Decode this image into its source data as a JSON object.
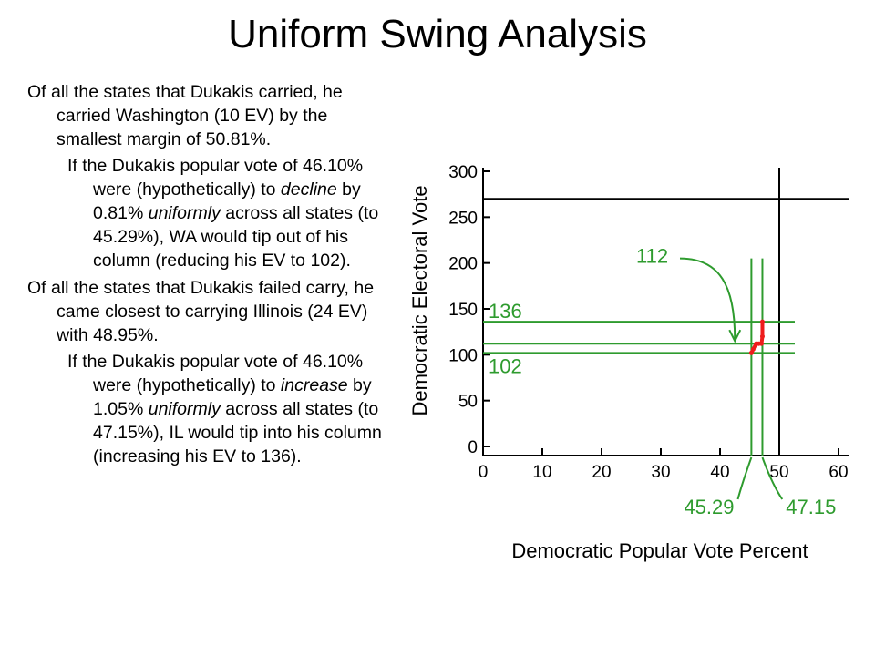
{
  "slide": {
    "title": "Uniform Swing Analysis",
    "para1": "Of all the states that Dukakis carried, he carried Washington (10 EV) by the smallest margin of 50.81%.",
    "para2_a": "If the Dukakis popular vote of 46.10% were (hypothetically) to ",
    "para2_em1": "decline",
    "para2_b": " by 0.81% ",
    "para2_em2": "uniformly",
    "para2_c": " across all states (to 45.29%), WA would tip out of his column (reducing his EV to 102).",
    "para3": "Of all the states that Dukakis failed carry, he came closest to carrying Illinois (24 EV) with 48.95%.",
    "para4_a": "If the Dukakis popular vote of 46.10% were (hypothetically) to ",
    "para4_em1": "increase",
    "para4_b": " by 1.05% ",
    "para4_em2": "uniformly",
    "para4_c": " across all states (to 47.15%), IL would tip into his column (increasing his EV to 136)."
  },
  "colors": {
    "reference_lines": "#2e9b2e",
    "annotation": "#2e9b2e",
    "curve": "#ee1c1c",
    "axes": "#000000"
  },
  "chart_data": {
    "type": "line",
    "xlabel": "Democratic Popular Vote Percent",
    "ylabel": "Democratic Electoral Vote",
    "xlim": [
      0,
      60
    ],
    "ylim": [
      0,
      300
    ],
    "x_ticks": [
      "0",
      "10",
      "20",
      "30",
      "40",
      "50",
      "60"
    ],
    "y_ticks": [
      "0",
      "50",
      "100",
      "150",
      "200",
      "250",
      "300"
    ],
    "threshold": {
      "x": 50,
      "y": 270
    },
    "series": [
      {
        "x": [
          45.29,
          45.6,
          46.1,
          46.5,
          47.0,
          47.15,
          47.15
        ],
        "y": [
          102,
          106,
          112,
          112,
          112,
          120,
          136
        ]
      }
    ],
    "reference_lines": {
      "vertical": [
        45.29,
        47.15
      ],
      "horizontal": [
        102,
        112,
        136
      ]
    },
    "annotations": {
      "ev_high": "136",
      "ev_low": "102",
      "ev_current": "112",
      "pv_low": "45.29",
      "pv_high": "47.15"
    }
  }
}
